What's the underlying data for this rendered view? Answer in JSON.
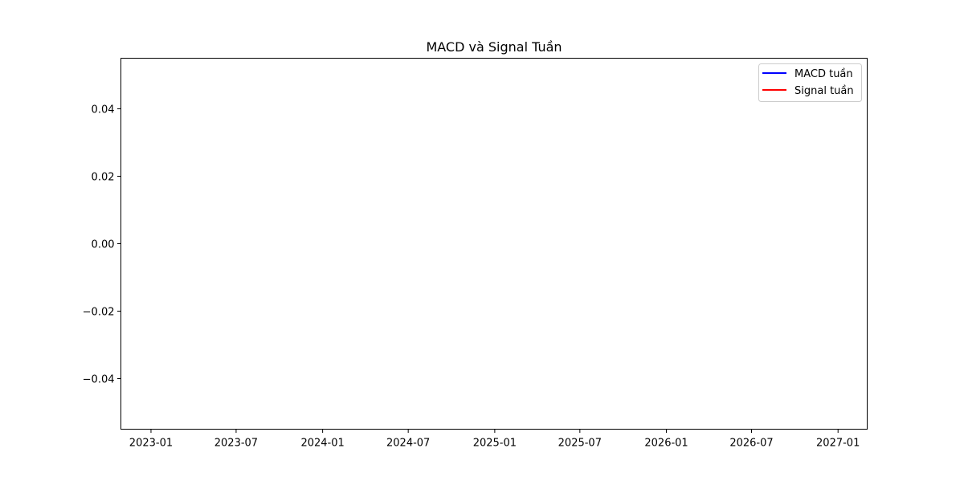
{
  "chart_data": {
    "type": "line",
    "title": "MACD và Signal Tuần",
    "xlabel": "",
    "ylabel": "",
    "x_axis": {
      "scale": "date",
      "range": [
        "2022-10-29",
        "2027-03-04"
      ],
      "ticks": [
        {
          "value": "2023-01-01",
          "label": "2023-01"
        },
        {
          "value": "2023-07-01",
          "label": "2023-07"
        },
        {
          "value": "2024-01-01",
          "label": "2024-01"
        },
        {
          "value": "2024-07-01",
          "label": "2024-07"
        },
        {
          "value": "2025-01-01",
          "label": "2025-01"
        },
        {
          "value": "2025-07-01",
          "label": "2025-07"
        },
        {
          "value": "2026-01-01",
          "label": "2026-01"
        },
        {
          "value": "2026-07-01",
          "label": "2026-07"
        },
        {
          "value": "2027-01-01",
          "label": "2027-01"
        }
      ]
    },
    "y_axis": {
      "range": [
        -0.055,
        0.055
      ],
      "ticks": [
        {
          "value": 0.04,
          "label": "0.04"
        },
        {
          "value": 0.02,
          "label": "0.02"
        },
        {
          "value": 0.0,
          "label": "0.00"
        },
        {
          "value": -0.02,
          "label": "−0.02"
        },
        {
          "value": -0.04,
          "label": "−0.04"
        }
      ]
    },
    "grid": false,
    "legend_position": "top-right",
    "series": [
      {
        "name": "MACD tuần",
        "color": "#0000ff",
        "x": [],
        "y": []
      },
      {
        "name": "Signal tuần",
        "color": "#ff0000",
        "x": [],
        "y": []
      }
    ]
  }
}
